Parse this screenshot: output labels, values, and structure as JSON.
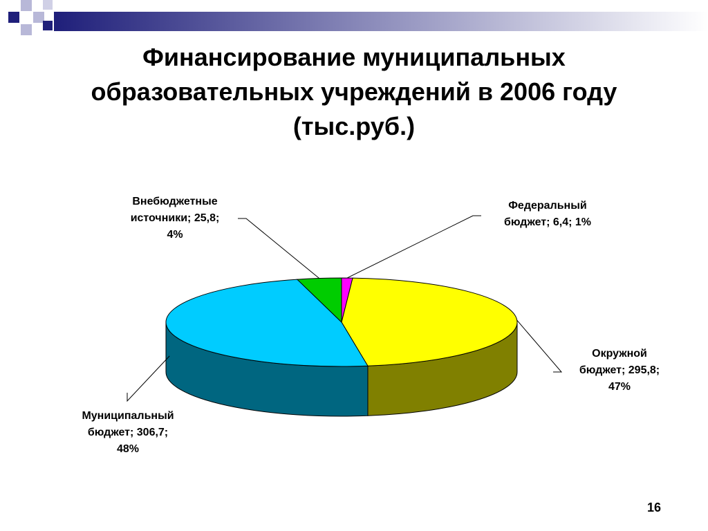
{
  "slide": {
    "title_lines": [
      "Финансирование муниципальных",
      "образовательных учреждений в 2006 году",
      "(тыс.руб.)"
    ],
    "page_number": "16"
  },
  "colors": {
    "header_band_dark": "#1f1f7a",
    "header_band_light": "#ffffff",
    "square_dark": "#1f1f7a",
    "square_light": "#b8b8d8"
  },
  "chart_data": {
    "type": "pie",
    "style": "3d",
    "title": "Финансирование муниципальных образовательных учреждений в 2006 году (тыс.руб.)",
    "slices": [
      {
        "name": "Федеральный бюджет",
        "value": 6.4,
        "percent": "1%",
        "label_lines": [
          "Федеральный",
          "бюджет; 6,4; 1%"
        ],
        "top_color": "#ff00ff",
        "side_color": "#800080"
      },
      {
        "name": "Окружной бюджет",
        "value": 295.8,
        "percent": "47%",
        "label_lines": [
          "Окружной",
          "бюджет; 295,8;",
          "47%"
        ],
        "top_color": "#ffff00",
        "side_color": "#808000"
      },
      {
        "name": "Муниципальный бюджет",
        "value": 306.7,
        "percent": "48%",
        "label_lines": [
          "Муниципальный",
          "бюджет; 306,7;",
          "48%"
        ],
        "top_color": "#00ccff",
        "side_color": "#006680"
      },
      {
        "name": "Внебюджетные источники",
        "value": 25.8,
        "percent": "4%",
        "label_lines": [
          "Внебюджетные",
          "источники; 25,8;",
          "4%"
        ],
        "top_color": "#00cc00",
        "side_color": "#006600"
      }
    ]
  }
}
